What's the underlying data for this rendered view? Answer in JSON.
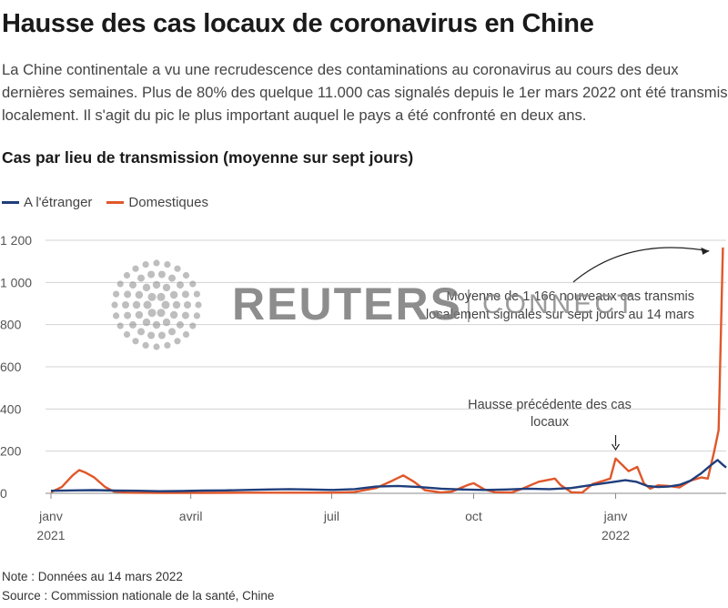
{
  "header": {
    "title": "Hausse des cas locaux de coronavirus en Chine",
    "description": "La Chine continentale a vu une recrudescence des contaminations au coronavirus au cours des deux dernières semaines. Plus de 80% des quelque 11.000 cas signalés depuis le 1er mars 2022 ont été transmis localement. Il s'agit du pic le plus important auquel le pays a été confronté en deux ans.",
    "subtitle": "Cas par lieu de transmission (moyenne sur sept jours)"
  },
  "watermark": {
    "brand": "REUTERS",
    "sub": "CONNECT"
  },
  "footer": {
    "note": "Note : Données au 14 mars 2022",
    "source": "Source : Commission nationale de la santé, Chine"
  },
  "chart_data": {
    "type": "line",
    "x_unit": "weeks since 2021-01-01",
    "xlim": [
      0,
      62.3
    ],
    "ylim": [
      0,
      1200
    ],
    "grid": true,
    "legend_position": "top-left",
    "y_ticks": [
      {
        "value": 0,
        "label": "0"
      },
      {
        "value": 200,
        "label": "200"
      },
      {
        "value": 400,
        "label": "400"
      },
      {
        "value": 600,
        "label": "600"
      },
      {
        "value": 800,
        "label": "800"
      },
      {
        "value": 1000,
        "label": "1 000"
      },
      {
        "value": 1200,
        "label": "1 200"
      }
    ],
    "x_ticks": [
      {
        "value": 0,
        "label": "janv",
        "sublabel": "2021"
      },
      {
        "value": 12.9,
        "label": "avril",
        "sublabel": ""
      },
      {
        "value": 25.9,
        "label": "juil",
        "sublabel": ""
      },
      {
        "value": 39.0,
        "label": "oct",
        "sublabel": ""
      },
      {
        "value": 52.1,
        "label": "janv",
        "sublabel": "2022"
      }
    ],
    "series": [
      {
        "name": "A l'étranger",
        "color": "#1f3e7c",
        "points": [
          [
            0,
            12
          ],
          [
            2,
            14
          ],
          [
            4,
            15
          ],
          [
            6,
            13
          ],
          [
            8,
            12
          ],
          [
            10,
            10
          ],
          [
            12,
            11
          ],
          [
            14,
            13
          ],
          [
            16,
            14
          ],
          [
            18,
            16
          ],
          [
            20,
            18
          ],
          [
            22,
            20
          ],
          [
            24,
            18
          ],
          [
            26,
            16
          ],
          [
            28,
            20
          ],
          [
            30,
            32
          ],
          [
            32,
            35
          ],
          [
            34,
            30
          ],
          [
            36,
            22
          ],
          [
            38,
            18
          ],
          [
            40,
            16
          ],
          [
            42,
            18
          ],
          [
            44,
            22
          ],
          [
            46,
            20
          ],
          [
            48,
            25
          ],
          [
            50,
            40
          ],
          [
            52,
            55
          ],
          [
            53,
            62
          ],
          [
            54,
            55
          ],
          [
            55,
            35
          ],
          [
            56,
            30
          ],
          [
            57,
            32
          ],
          [
            58,
            40
          ],
          [
            59,
            60
          ],
          [
            60,
            95
          ],
          [
            60.8,
            130
          ],
          [
            61.5,
            158
          ],
          [
            62.0,
            135
          ],
          [
            62.3,
            122
          ]
        ]
      },
      {
        "name": "Domestiques",
        "color": "#e0572a",
        "points": [
          [
            0,
            5
          ],
          [
            1,
            30
          ],
          [
            2,
            85
          ],
          [
            2.6,
            110
          ],
          [
            3.2,
            98
          ],
          [
            4,
            75
          ],
          [
            5,
            30
          ],
          [
            5.8,
            8
          ],
          [
            7,
            3
          ],
          [
            10,
            2
          ],
          [
            14,
            2
          ],
          [
            18,
            3
          ],
          [
            22,
            3
          ],
          [
            26,
            3
          ],
          [
            28,
            6
          ],
          [
            30,
            25
          ],
          [
            31.5,
            60
          ],
          [
            32.5,
            85
          ],
          [
            33.5,
            55
          ],
          [
            34.5,
            15
          ],
          [
            36,
            4
          ],
          [
            37,
            8
          ],
          [
            38.5,
            40
          ],
          [
            39,
            48
          ],
          [
            40,
            18
          ],
          [
            41,
            5
          ],
          [
            42.5,
            4
          ],
          [
            43.5,
            22
          ],
          [
            45,
            55
          ],
          [
            46.5,
            70
          ],
          [
            47,
            40
          ],
          [
            48,
            5
          ],
          [
            49,
            3
          ],
          [
            50,
            45
          ],
          [
            51,
            60
          ],
          [
            51.6,
            70
          ],
          [
            52.1,
            165
          ],
          [
            52.7,
            135
          ],
          [
            53.3,
            105
          ],
          [
            54.1,
            125
          ],
          [
            54.7,
            48
          ],
          [
            55.3,
            22
          ],
          [
            56,
            38
          ],
          [
            57,
            35
          ],
          [
            58,
            28
          ],
          [
            59,
            60
          ],
          [
            60,
            75
          ],
          [
            60.6,
            70
          ],
          [
            61.2,
            200
          ],
          [
            61.6,
            300
          ],
          [
            62.0,
            1166
          ]
        ]
      }
    ],
    "annotations": [
      {
        "text_lines": [
          "Moyenne de 1.166 nouveaux cas transmis",
          "localement signalés sur sept jours au 14 mars"
        ],
        "target": [
          61.9,
          1166
        ]
      },
      {
        "text_lines": [
          "Hausse précédente des cas",
          "locaux"
        ],
        "target": [
          52.1,
          165
        ]
      }
    ]
  }
}
